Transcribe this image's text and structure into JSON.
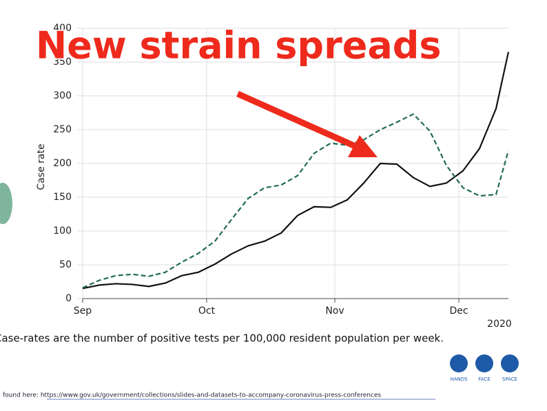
{
  "chart_data": {
    "type": "line",
    "annotation": "New strain spreads",
    "ylabel": "Case rate",
    "xlabel": "2020",
    "xlim": [
      0,
      103
    ],
    "xticks": [
      {
        "value": 0,
        "label": "Sep"
      },
      {
        "value": 30,
        "label": "Oct"
      },
      {
        "value": 61,
        "label": "Nov"
      },
      {
        "value": 91,
        "label": "Dec"
      }
    ],
    "ylim": [
      0,
      400
    ],
    "yticks": [
      0,
      50,
      100,
      150,
      200,
      250,
      300,
      350,
      400
    ],
    "grid": true,
    "x": [
      0,
      4,
      8,
      12,
      16,
      20,
      24,
      28,
      32,
      36,
      40,
      44,
      48,
      52,
      56,
      60,
      64,
      68,
      72,
      76,
      80,
      84,
      88,
      92,
      96,
      100,
      103
    ],
    "series": [
      {
        "color": "#111111",
        "dash": false,
        "values": [
          15,
          20,
          22,
          21,
          18,
          23,
          34,
          39,
          51,
          66,
          78,
          85,
          97,
          123,
          136,
          135,
          146,
          171,
          200,
          199,
          179,
          166,
          171,
          189,
          222,
          281,
          365
        ]
      },
      {
        "color": "#1f6b52",
        "dash": true,
        "values": [
          16,
          27,
          34,
          36,
          33,
          39,
          54,
          67,
          85,
          117,
          148,
          164,
          168,
          182,
          215,
          230,
          227,
          235,
          250,
          261,
          273,
          248,
          197,
          164,
          152,
          154,
          219
        ]
      }
    ]
  },
  "footnote": "Case-rates are the number of positive tests per 100,000 resident population per week.",
  "source": "found here: https://www.gov.uk/government/collections/slides-and-datasets-to-accompany-coronavirus-press-conferences",
  "icons": [
    "HANDS",
    "FACE",
    "SPACE"
  ]
}
